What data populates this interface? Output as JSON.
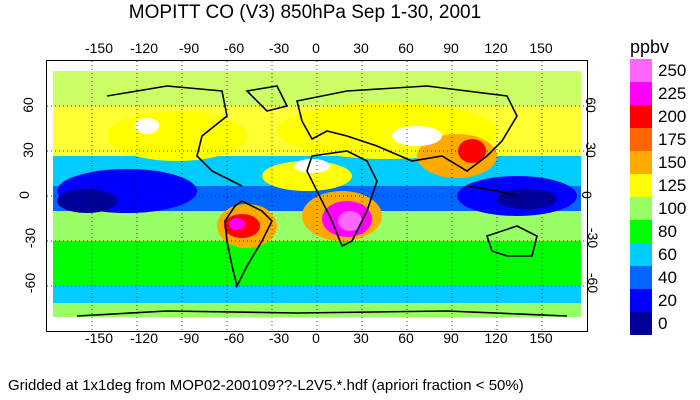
{
  "title": "MOPITT CO (V3) 850hPa Sep 1-30, 2001",
  "footnote": "Gridded at 1x1deg from MOP02-200109??-L2V5.*.hdf (apriori fraction < 50%)",
  "lon_ticks": [
    "-150",
    "-120",
    "-90",
    "-60",
    "-30",
    "0",
    "30",
    "60",
    "90",
    "120",
    "150"
  ],
  "lat_ticks_left": [
    "60",
    "30",
    "0",
    "-30",
    "-60"
  ],
  "lat_ticks_right": [
    "60",
    "30",
    "0",
    "-30",
    "-60"
  ],
  "colorbar": {
    "unit": "ppbv",
    "levels": [
      {
        "label": "250",
        "color": "#ff66ff"
      },
      {
        "label": "225",
        "color": "#ff00ff"
      },
      {
        "label": "200",
        "color": "#ff0000"
      },
      {
        "label": "175",
        "color": "#ff6600"
      },
      {
        "label": "150",
        "color": "#ffaa00"
      },
      {
        "label": "125",
        "color": "#ffff00"
      },
      {
        "label": "100",
        "color": "#99ff66"
      },
      {
        "label": "80",
        "color": "#00ff00"
      },
      {
        "label": "60",
        "color": "#00ccff"
      },
      {
        "label": "40",
        "color": "#0066ff"
      },
      {
        "label": "20",
        "color": "#0000ff"
      },
      {
        "label": "0",
        "color": "#000099"
      }
    ]
  }
}
